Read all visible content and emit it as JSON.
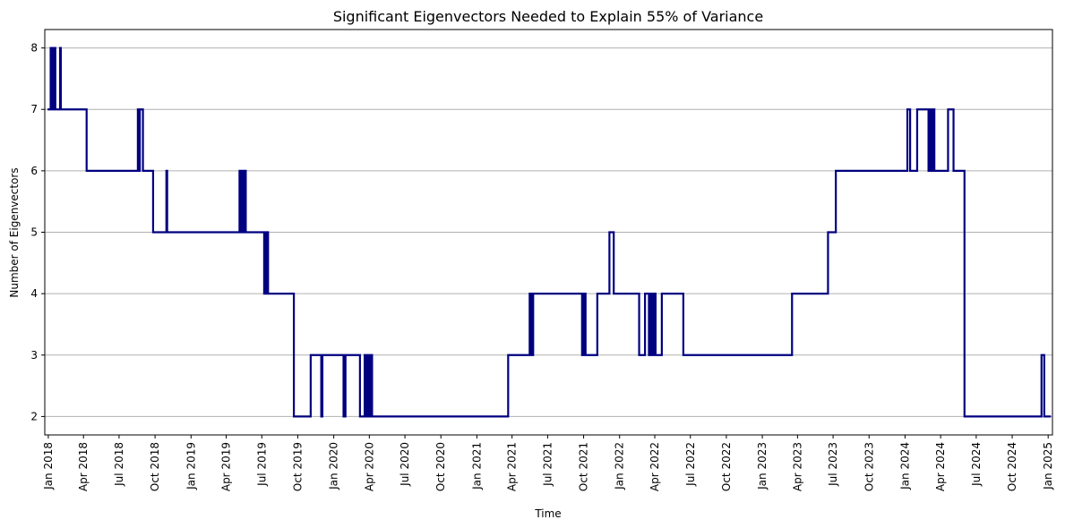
{
  "chart_data": {
    "type": "line",
    "title": "Significant Eigenvectors Needed to Explain 55% of Variance",
    "xlabel": "Time",
    "ylabel": "Number of Eigenvectors",
    "xlim": [
      "2017-12-23",
      "2025-01-12"
    ],
    "ylim": [
      1.7,
      8.3
    ],
    "yticks": [
      2,
      3,
      4,
      5,
      6,
      7,
      8
    ],
    "xticks": [
      {
        "date": "2018-01-01",
        "label": "Jan 2018"
      },
      {
        "date": "2018-04-01",
        "label": "Apr 2018"
      },
      {
        "date": "2018-07-01",
        "label": "Jul 2018"
      },
      {
        "date": "2018-10-01",
        "label": "Oct 2018"
      },
      {
        "date": "2019-01-01",
        "label": "Jan 2019"
      },
      {
        "date": "2019-04-01",
        "label": "Apr 2019"
      },
      {
        "date": "2019-07-01",
        "label": "Jul 2019"
      },
      {
        "date": "2019-10-01",
        "label": "Oct 2019"
      },
      {
        "date": "2020-01-01",
        "label": "Jan 2020"
      },
      {
        "date": "2020-04-01",
        "label": "Apr 2020"
      },
      {
        "date": "2020-07-01",
        "label": "Jul 2020"
      },
      {
        "date": "2020-10-01",
        "label": "Oct 2020"
      },
      {
        "date": "2021-01-01",
        "label": "Jan 2021"
      },
      {
        "date": "2021-04-01",
        "label": "Apr 2021"
      },
      {
        "date": "2021-07-01",
        "label": "Jul 2021"
      },
      {
        "date": "2021-10-01",
        "label": "Oct 2021"
      },
      {
        "date": "2022-01-01",
        "label": "Jan 2022"
      },
      {
        "date": "2022-04-01",
        "label": "Apr 2022"
      },
      {
        "date": "2022-07-01",
        "label": "Jul 2022"
      },
      {
        "date": "2022-10-01",
        "label": "Oct 2022"
      },
      {
        "date": "2023-01-01",
        "label": "Jan 2023"
      },
      {
        "date": "2023-04-01",
        "label": "Apr 2023"
      },
      {
        "date": "2023-07-01",
        "label": "Jul 2023"
      },
      {
        "date": "2023-10-01",
        "label": "Oct 2023"
      },
      {
        "date": "2024-01-01",
        "label": "Jan 2024"
      },
      {
        "date": "2024-04-01",
        "label": "Apr 2024"
      },
      {
        "date": "2024-07-01",
        "label": "Jul 2024"
      },
      {
        "date": "2024-10-01",
        "label": "Oct 2024"
      },
      {
        "date": "2025-01-01",
        "label": "Jan 2025"
      }
    ],
    "grid": "y",
    "series": [
      {
        "color": "#000080",
        "step": true,
        "points": [
          [
            "2017-12-30",
            7
          ],
          [
            "2018-01-07",
            8
          ],
          [
            "2018-01-11",
            7
          ],
          [
            "2018-01-14",
            8
          ],
          [
            "2018-01-19",
            7
          ],
          [
            "2018-01-31",
            8
          ],
          [
            "2018-02-02",
            7
          ],
          [
            "2018-04-09",
            6
          ],
          [
            "2018-08-18",
            7
          ],
          [
            "2018-08-21",
            6
          ],
          [
            "2018-08-23",
            7
          ],
          [
            "2018-08-31",
            6
          ],
          [
            "2018-09-26",
            5
          ],
          [
            "2018-10-30",
            6
          ],
          [
            "2018-11-01",
            5
          ],
          [
            "2019-05-05",
            6
          ],
          [
            "2019-05-07",
            5
          ],
          [
            "2019-05-09",
            6
          ],
          [
            "2019-05-12",
            5
          ],
          [
            "2019-05-15",
            6
          ],
          [
            "2019-05-17",
            5
          ],
          [
            "2019-05-19",
            6
          ],
          [
            "2019-05-21",
            5
          ],
          [
            "2019-07-07",
            4
          ],
          [
            "2019-07-09",
            5
          ],
          [
            "2019-07-12",
            4
          ],
          [
            "2019-07-14",
            5
          ],
          [
            "2019-07-17",
            4
          ],
          [
            "2019-09-21",
            2
          ],
          [
            "2019-11-03",
            3
          ],
          [
            "2019-11-30",
            2
          ],
          [
            "2019-12-03",
            3
          ],
          [
            "2020-01-26",
            2
          ],
          [
            "2020-01-31",
            3
          ],
          [
            "2020-03-08",
            2
          ],
          [
            "2020-03-20",
            3
          ],
          [
            "2020-03-24",
            2
          ],
          [
            "2020-03-28",
            3
          ],
          [
            "2020-04-01",
            2
          ],
          [
            "2020-04-04",
            3
          ],
          [
            "2020-04-08",
            2
          ],
          [
            "2021-03-22",
            3
          ],
          [
            "2021-05-16",
            4
          ],
          [
            "2021-05-20",
            3
          ],
          [
            "2021-05-25",
            4
          ],
          [
            "2021-09-27",
            3
          ],
          [
            "2021-10-02",
            4
          ],
          [
            "2021-10-06",
            3
          ],
          [
            "2021-11-05",
            4
          ],
          [
            "2021-12-06",
            5
          ],
          [
            "2021-12-17",
            4
          ],
          [
            "2022-02-20",
            3
          ],
          [
            "2022-03-07",
            4
          ],
          [
            "2022-03-17",
            3
          ],
          [
            "2022-03-22",
            4
          ],
          [
            "2022-03-25",
            3
          ],
          [
            "2022-03-30",
            4
          ],
          [
            "2022-04-03",
            3
          ],
          [
            "2022-04-19",
            4
          ],
          [
            "2022-06-13",
            3
          ],
          [
            "2023-03-18",
            4
          ],
          [
            "2023-06-18",
            5
          ],
          [
            "2023-07-08",
            6
          ],
          [
            "2024-01-07",
            7
          ],
          [
            "2024-01-14",
            6
          ],
          [
            "2024-02-01",
            7
          ],
          [
            "2024-03-01",
            6
          ],
          [
            "2024-03-05",
            7
          ],
          [
            "2024-03-09",
            6
          ],
          [
            "2024-03-13",
            7
          ],
          [
            "2024-03-16",
            6
          ],
          [
            "2024-04-20",
            7
          ],
          [
            "2024-05-04",
            6
          ],
          [
            "2024-06-01",
            2
          ],
          [
            "2024-12-15",
            3
          ],
          [
            "2024-12-22",
            2
          ],
          [
            "2025-01-08",
            2
          ]
        ]
      }
    ]
  }
}
